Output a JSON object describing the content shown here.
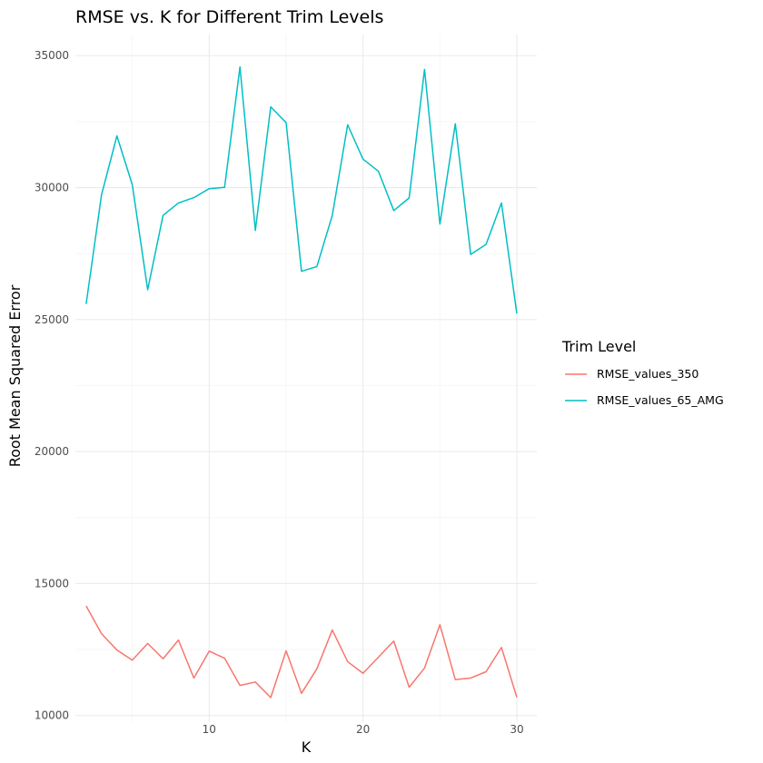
{
  "chart_data": {
    "type": "line",
    "title": "RMSE vs. K for Different Trim Levels",
    "xlabel": "K",
    "ylabel": "Root Mean Squared Error",
    "xlim": [
      1.3,
      31.3
    ],
    "ylim": [
      9750,
      35800
    ],
    "x_ticks": [
      10,
      20,
      30
    ],
    "x_minor_ticks": [
      5,
      15,
      25
    ],
    "y_ticks": [
      10000,
      15000,
      20000,
      25000,
      30000,
      35000
    ],
    "y_minor_ticks": [
      12500,
      17500,
      22500,
      27500,
      32500
    ],
    "grid": true,
    "legend": {
      "title": "Trim Level",
      "position": "right"
    },
    "x": [
      2,
      3,
      4,
      5,
      6,
      7,
      8,
      9,
      10,
      11,
      12,
      13,
      14,
      15,
      16,
      17,
      18,
      19,
      20,
      21,
      22,
      23,
      24,
      25,
      26,
      27,
      28,
      29,
      30
    ],
    "series": [
      {
        "name": "RMSE_values_350",
        "color": "#F8766D",
        "values": [
          14150,
          13100,
          12480,
          12100,
          12730,
          12150,
          12860,
          11420,
          12440,
          12170,
          11140,
          11270,
          10680,
          12450,
          10840,
          11770,
          13240,
          12040,
          11600,
          12210,
          12820,
          11070,
          11800,
          13440,
          11360,
          11420,
          11660,
          12580,
          10690
        ]
      },
      {
        "name": "RMSE_values_65_AMG",
        "color": "#00BFC4",
        "values": [
          25590,
          29730,
          31960,
          30110,
          26130,
          28950,
          29420,
          29620,
          29960,
          30010,
          34570,
          28380,
          33060,
          32460,
          26830,
          27010,
          28940,
          32380,
          31080,
          30620,
          29130,
          29610,
          34480,
          28620,
          32420,
          27470,
          27850,
          29420,
          25230
        ]
      }
    ]
  }
}
